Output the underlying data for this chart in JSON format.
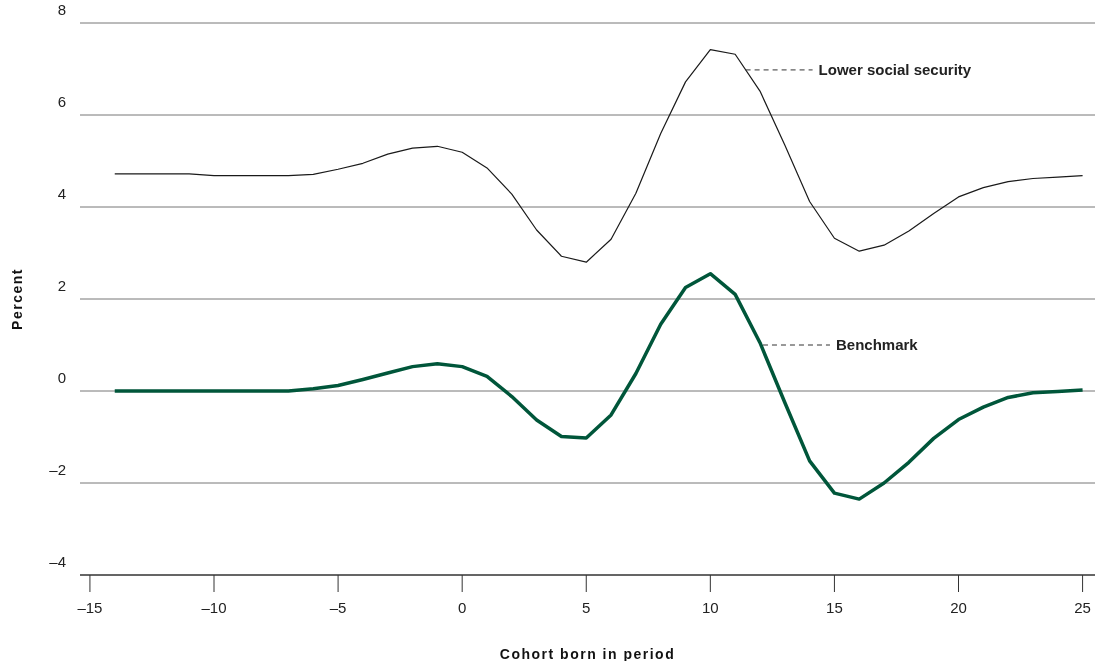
{
  "chart_data": {
    "type": "line",
    "xlabel": "Cohort born in period",
    "ylabel": "Percent",
    "x": [
      -14,
      -13,
      -12,
      -11,
      -10,
      -9,
      -8,
      -7,
      -6,
      -5,
      -4,
      -3,
      -2,
      -1,
      0,
      1,
      2,
      3,
      4,
      5,
      6,
      7,
      8,
      9,
      10,
      11,
      12,
      13,
      14,
      15,
      16,
      17,
      18,
      19,
      20,
      21,
      22,
      23,
      24,
      25
    ],
    "series": [
      {
        "color": "#1a1a1a",
        "values": [
          4.72,
          4.72,
          4.72,
          4.72,
          4.68,
          4.68,
          4.68,
          4.68,
          4.71,
          4.82,
          4.95,
          5.15,
          5.28,
          5.32,
          5.19,
          4.85,
          4.28,
          3.5,
          2.93,
          2.8,
          3.3,
          4.3,
          5.6,
          6.72,
          7.42,
          7.32,
          6.52,
          5.35,
          4.12,
          3.32,
          3.04,
          3.17,
          3.48,
          3.86,
          4.22,
          4.42,
          4.55,
          4.62,
          4.65,
          4.68
        ]
      },
      {
        "color": "#00563a",
        "values": [
          0,
          0,
          0,
          0,
          0,
          0,
          0,
          0,
          0.05,
          0.12,
          0.25,
          0.39,
          0.53,
          0.59,
          0.53,
          0.32,
          -0.12,
          -0.63,
          -0.99,
          -1.02,
          -0.52,
          0.38,
          1.45,
          2.25,
          2.55,
          2.1,
          1.05,
          -0.25,
          -1.52,
          -2.22,
          -2.35,
          -2.0,
          -1.55,
          -1.03,
          -0.62,
          -0.35,
          -0.14,
          -0.04,
          -0.01,
          0.02
        ]
      }
    ],
    "annotations": [
      {
        "text": "Lower social security",
        "x": 11.3,
        "y": 6.98
      },
      {
        "text": "Benchmark",
        "x": 12,
        "y": 1.0
      }
    ],
    "xlim": [
      -15.4,
      25.5
    ],
    "ylim": [
      -4,
      8
    ],
    "xticks": [
      {
        "value": -15,
        "label": "–15"
      },
      {
        "value": -10,
        "label": "–10"
      },
      {
        "value": -5,
        "label": "–5"
      },
      0,
      5,
      10,
      15,
      20,
      25
    ],
    "yticks": [
      {
        "value": -4,
        "label": "–4"
      },
      {
        "value": -2,
        "label": "–2"
      },
      0,
      2,
      4,
      6,
      8
    ],
    "grid": "y",
    "marker": "none",
    "line_style": "solid"
  }
}
